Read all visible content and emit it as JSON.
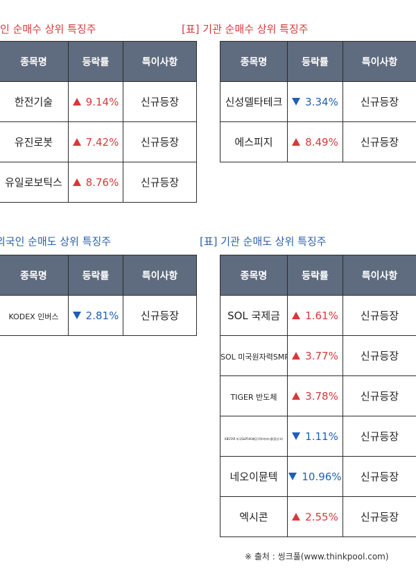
{
  "headers": {
    "name": "종목명",
    "change": "등락률",
    "note": "특이사항"
  },
  "foreign_buy": {
    "title": "인 순매수 상위 특징주",
    "rows": [
      {
        "name": "한전기술",
        "dir": "up",
        "change": "9.14%",
        "note": "신규등장"
      },
      {
        "name": "유진로봇",
        "dir": "up",
        "change": "7.42%",
        "note": "신규등장"
      },
      {
        "name": "유일로보틱스",
        "dir": "up",
        "change": "8.76%",
        "note": "신규등장"
      }
    ]
  },
  "inst_buy": {
    "title": "[표] 기관 순매수 상위 특징주",
    "rows": [
      {
        "name": "신성델타테크",
        "dir": "down",
        "change": "3.34%",
        "note": "신규등장"
      },
      {
        "name": "에스피지",
        "dir": "up",
        "change": "8.49%",
        "note": "신규등장"
      }
    ]
  },
  "foreign_sell": {
    "title": "외국인 순매도 상위 특징주",
    "rows": [
      {
        "name": "KODEX 인버스",
        "dir": "down",
        "change": "2.81%",
        "note": "신규등장"
      }
    ]
  },
  "inst_sell": {
    "title": "[표] 기관 순매도 상위 특징주",
    "rows": [
      {
        "name": "SOL 국제금",
        "dir": "up",
        "change": "1.61%",
        "note": "신규등장"
      },
      {
        "name": "SOL 미국원자력SMR",
        "dir": "up",
        "change": "3.77%",
        "note": "신규등장"
      },
      {
        "name": "TIGER 반도체",
        "dir": "up",
        "change": "3.78%",
        "note": "신규등장"
      },
      {
        "name": "KBSTAR 미국S&P500배당귀족커버드콜(합성 H)",
        "dir": "down",
        "change": "1.11%",
        "note": "신규등장"
      },
      {
        "name": "네오이뮨텍",
        "dir": "down",
        "change": "10.96%",
        "note": "신규등장"
      },
      {
        "name": "엑시콘",
        "dir": "up",
        "change": "2.55%",
        "note": "신규등장"
      }
    ]
  },
  "source": "※ 출처 : 씽크풀(www.thinkpool.com)",
  "colors": {
    "header_bg": "#5f6b7e",
    "up": "#d9383a",
    "down": "#1f5fb5",
    "title_red": "#d9383a",
    "title_blue": "#2a5fa8"
  }
}
